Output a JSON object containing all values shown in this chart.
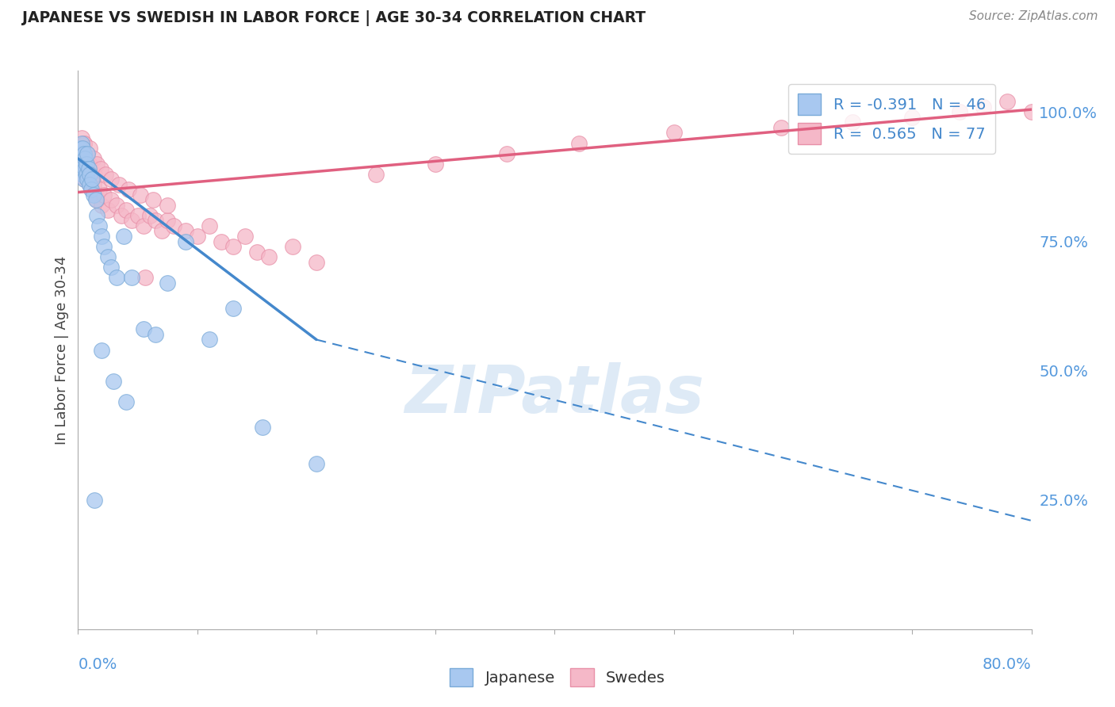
{
  "title": "JAPANESE VS SWEDISH IN LABOR FORCE | AGE 30-34 CORRELATION CHART",
  "source": "Source: ZipAtlas.com",
  "ylabel": "In Labor Force | Age 30-34",
  "yticks_right": [
    0.25,
    0.5,
    0.75,
    1.0
  ],
  "ytick_labels_right": [
    "25.0%",
    "50.0%",
    "75.0%",
    "100.0%"
  ],
  "xmin": 0.0,
  "xmax": 0.8,
  "ymin": 0.0,
  "ymax": 1.08,
  "japanese_R": -0.391,
  "japanese_N": 46,
  "swedes_R": 0.565,
  "swedes_N": 77,
  "japanese_color": "#a8c8f0",
  "swedes_color": "#f5b8c8",
  "japanese_edge_color": "#7aaad8",
  "swedes_edge_color": "#e890a8",
  "japanese_line_color": "#4488cc",
  "swedes_line_color": "#e06080",
  "bg_color": "#ffffff",
  "grid_color": "#dddddd",
  "watermark": "ZIPatlas",
  "watermark_color": "#c8ddf0",
  "jp_line_x0": 0.0,
  "jp_line_y0": 0.91,
  "jp_line_x1": 0.2,
  "jp_line_y1": 0.56,
  "jp_line_x2": 0.8,
  "jp_line_y2": 0.21,
  "sw_line_x0": 0.0,
  "sw_line_y0": 0.845,
  "sw_line_x1": 0.8,
  "sw_line_y1": 1.005,
  "japanese_x": [
    0.001,
    0.002,
    0.002,
    0.003,
    0.003,
    0.003,
    0.004,
    0.004,
    0.004,
    0.005,
    0.005,
    0.005,
    0.006,
    0.006,
    0.007,
    0.007,
    0.008,
    0.008,
    0.009,
    0.01,
    0.01,
    0.011,
    0.012,
    0.013,
    0.015,
    0.016,
    0.018,
    0.02,
    0.022,
    0.025,
    0.028,
    0.032,
    0.038,
    0.045,
    0.055,
    0.065,
    0.075,
    0.09,
    0.11,
    0.13,
    0.02,
    0.03,
    0.04,
    0.155,
    0.014,
    0.2
  ],
  "japanese_y": [
    0.91,
    0.93,
    0.9,
    0.92,
    0.89,
    0.94,
    0.91,
    0.88,
    0.93,
    0.9,
    0.87,
    0.92,
    0.89,
    0.91,
    0.88,
    0.9,
    0.87,
    0.92,
    0.89,
    0.88,
    0.86,
    0.85,
    0.87,
    0.84,
    0.83,
    0.8,
    0.78,
    0.76,
    0.74,
    0.72,
    0.7,
    0.68,
    0.76,
    0.68,
    0.58,
    0.57,
    0.67,
    0.75,
    0.56,
    0.62,
    0.54,
    0.48,
    0.44,
    0.39,
    0.25,
    0.32
  ],
  "swedes_x": [
    0.001,
    0.002,
    0.002,
    0.003,
    0.003,
    0.004,
    0.004,
    0.005,
    0.005,
    0.006,
    0.006,
    0.007,
    0.007,
    0.008,
    0.008,
    0.009,
    0.01,
    0.01,
    0.011,
    0.012,
    0.013,
    0.014,
    0.015,
    0.016,
    0.018,
    0.02,
    0.022,
    0.025,
    0.028,
    0.032,
    0.036,
    0.04,
    0.045,
    0.05,
    0.055,
    0.06,
    0.065,
    0.07,
    0.075,
    0.08,
    0.09,
    0.1,
    0.11,
    0.12,
    0.13,
    0.14,
    0.15,
    0.16,
    0.18,
    0.2,
    0.003,
    0.005,
    0.008,
    0.01,
    0.013,
    0.016,
    0.019,
    0.023,
    0.028,
    0.034,
    0.042,
    0.052,
    0.063,
    0.075,
    0.25,
    0.3,
    0.36,
    0.42,
    0.5,
    0.59,
    0.65,
    0.7,
    0.74,
    0.76,
    0.78,
    0.8,
    0.056
  ],
  "swedes_y": [
    0.92,
    0.9,
    0.93,
    0.89,
    0.91,
    0.93,
    0.88,
    0.91,
    0.94,
    0.9,
    0.87,
    0.91,
    0.89,
    0.9,
    0.87,
    0.88,
    0.86,
    0.9,
    0.87,
    0.85,
    0.86,
    0.88,
    0.84,
    0.83,
    0.85,
    0.82,
    0.84,
    0.81,
    0.83,
    0.82,
    0.8,
    0.81,
    0.79,
    0.8,
    0.78,
    0.8,
    0.79,
    0.77,
    0.79,
    0.78,
    0.77,
    0.76,
    0.78,
    0.75,
    0.74,
    0.76,
    0.73,
    0.72,
    0.74,
    0.71,
    0.95,
    0.94,
    0.92,
    0.93,
    0.91,
    0.9,
    0.89,
    0.88,
    0.87,
    0.86,
    0.85,
    0.84,
    0.83,
    0.82,
    0.88,
    0.9,
    0.92,
    0.94,
    0.96,
    0.97,
    0.98,
    0.99,
    1.0,
    1.01,
    1.02,
    1.0,
    0.68
  ]
}
